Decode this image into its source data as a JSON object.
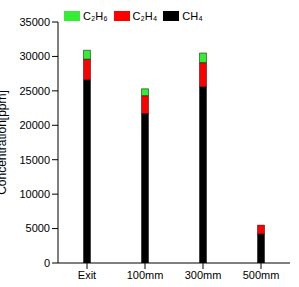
{
  "chart_data": {
    "type": "bar",
    "stacked": true,
    "y_label": "Concentration[ppm]",
    "categories": [
      "Exit",
      "100mm",
      "300mm",
      "500mm"
    ],
    "series": [
      {
        "name": "C₂H₆",
        "color": "#33ee33",
        "values": [
          1300,
          1000,
          1400,
          0
        ]
      },
      {
        "name": "C₂H₄",
        "color": "#ff0000",
        "values": [
          3000,
          2600,
          3500,
          1300
        ]
      },
      {
        "name": "CH₄",
        "color": "#000000",
        "values": [
          26600,
          21700,
          25600,
          4200
        ]
      }
    ],
    "ylim": [
      0,
      35000
    ],
    "yticks": [
      0,
      5000,
      10000,
      15000,
      20000,
      25000,
      30000,
      35000
    ],
    "grid": false,
    "legend": "upper left"
  }
}
